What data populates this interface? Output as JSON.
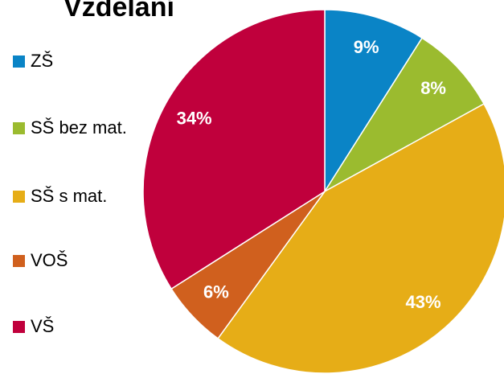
{
  "chart_data": {
    "type": "pie",
    "title": "Vzdělání",
    "categories": [
      "ZŠ",
      "SŠ bez mat.",
      "SŠ s mat.",
      "VOŠ",
      "VŠ"
    ],
    "values": [
      9,
      8,
      43,
      6,
      34
    ],
    "value_labels": [
      "9%",
      "8%",
      "43%",
      "6%",
      "34%"
    ],
    "colors": [
      "#0a84c6",
      "#9bbb2f",
      "#e6ad17",
      "#d0601e",
      "#c0003c"
    ],
    "legend": "left"
  }
}
